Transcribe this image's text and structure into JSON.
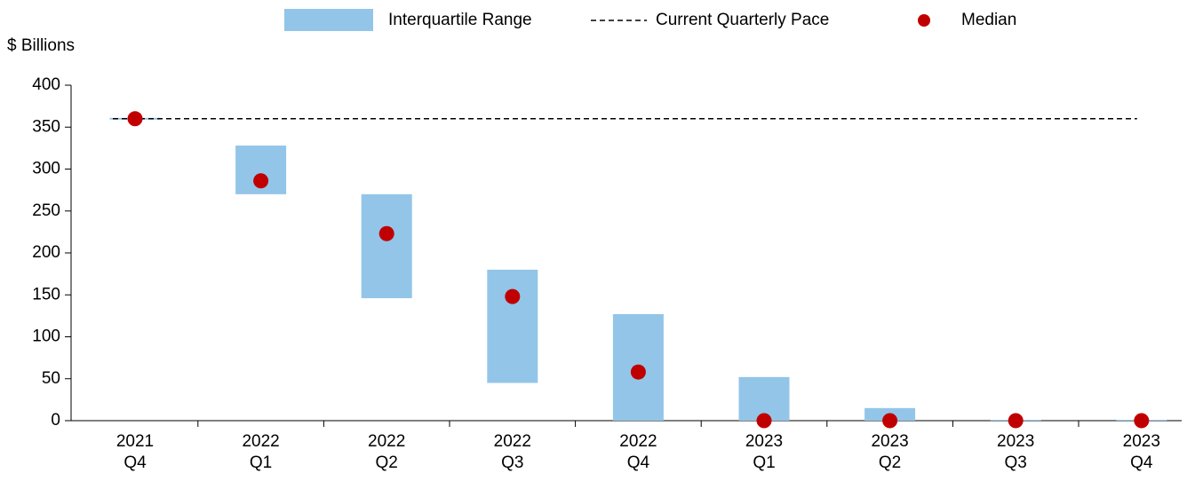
{
  "chart_data": {
    "type": "range-dot",
    "y_label": "$ Billions",
    "categories": [
      [
        "2021",
        "Q4"
      ],
      [
        "2022",
        "Q1"
      ],
      [
        "2022",
        "Q2"
      ],
      [
        "2022",
        "Q3"
      ],
      [
        "2022",
        "Q4"
      ],
      [
        "2023",
        "Q1"
      ],
      [
        "2023",
        "Q2"
      ],
      [
        "2023",
        "Q3"
      ],
      [
        "2023",
        "Q4"
      ]
    ],
    "series": [
      {
        "name": "Interquartile Range",
        "color": "#93c5e9",
        "values": [
          [
            359,
            361
          ],
          [
            270,
            328
          ],
          [
            146,
            270
          ],
          [
            45,
            180
          ],
          [
            0,
            127
          ],
          [
            0,
            52
          ],
          [
            0,
            15
          ],
          [
            0,
            1
          ],
          [
            0,
            1
          ]
        ]
      },
      {
        "name": "Current Quarterly Pace",
        "color": "#000000",
        "value": 360
      },
      {
        "name": "Median",
        "color": "#c00000",
        "values": [
          360,
          286,
          223,
          148,
          58,
          0,
          0,
          0,
          0
        ]
      }
    ],
    "ylim": [
      0,
      400
    ],
    "yticks": [
      0,
      50,
      100,
      150,
      200,
      250,
      300,
      350,
      400
    ]
  }
}
